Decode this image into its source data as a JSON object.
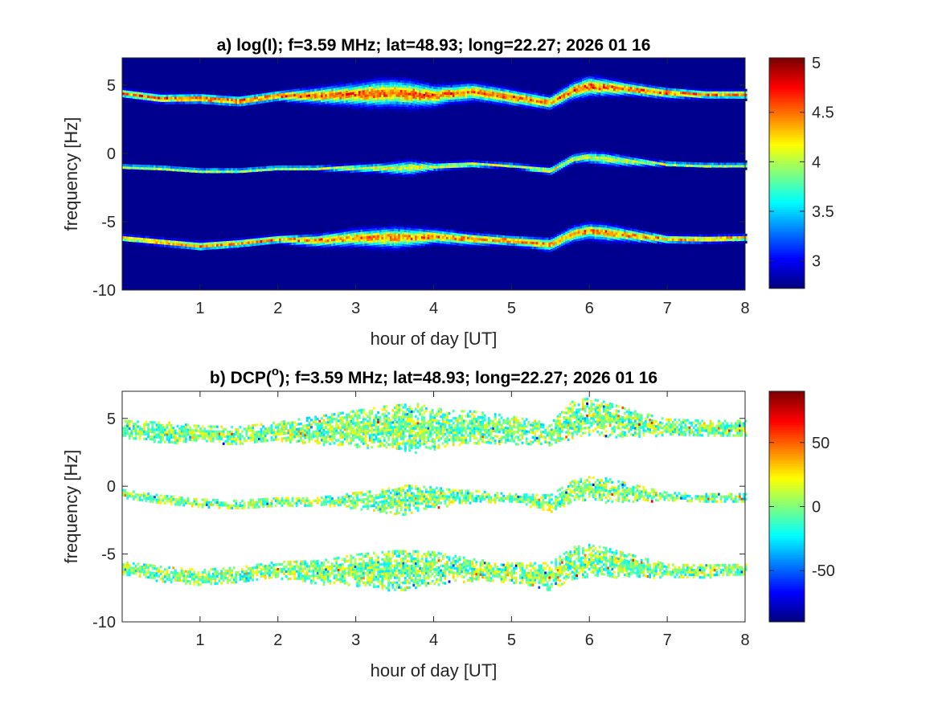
{
  "chart_data": [
    {
      "type": "heatmap",
      "title": "a) log(I); f=3.59 MHz;  lat=48.93; long=22.27; 2026 01 16",
      "xlabel": "hour of day [UT]",
      "ylabel": "frequency [Hz]",
      "xlim": [
        0,
        8
      ],
      "ylim": [
        -10,
        7
      ],
      "xticks": [
        1,
        2,
        3,
        4,
        5,
        6,
        7,
        8
      ],
      "yticks": [
        -10,
        -5,
        0,
        5
      ],
      "background": "#00008f",
      "colorbar": {
        "ticks": [
          "3",
          "3.5",
          "4",
          "4.5",
          "5"
        ],
        "tick_values": [
          3,
          3.5,
          4,
          4.5,
          5
        ],
        "range": [
          2.72,
          5.05
        ],
        "colormap": "jet"
      },
      "bands": [
        {
          "center": [
            [
              0,
              4.5
            ],
            [
              0.5,
              4.1
            ],
            [
              1,
              4.1
            ],
            [
              1.5,
              3.9
            ],
            [
              2,
              4.3
            ],
            [
              2.5,
              4.3
            ],
            [
              3,
              4.4
            ],
            [
              3.5,
              4.5
            ],
            [
              4,
              4.3
            ],
            [
              4.5,
              4.6
            ],
            [
              5,
              4.2
            ],
            [
              5.5,
              3.8
            ],
            [
              5.8,
              4.7
            ],
            [
              6,
              5.0
            ],
            [
              6.5,
              4.8
            ],
            [
              7,
              4.5
            ],
            [
              7.5,
              4.4
            ],
            [
              8,
              4.4
            ]
          ],
          "spread": [
            [
              0,
              0.5
            ],
            [
              1,
              0.6
            ],
            [
              2,
              0.6
            ],
            [
              2.8,
              1.2
            ],
            [
              3.3,
              1.6
            ],
            [
              3.7,
              1.6
            ],
            [
              4.2,
              1.1
            ],
            [
              4.8,
              1.0
            ],
            [
              5.5,
              0.8
            ],
            [
              6,
              1.2
            ],
            [
              6.5,
              0.8
            ],
            [
              7.5,
              0.5
            ],
            [
              8,
              0.5
            ]
          ],
          "peak": 4.8
        },
        {
          "center": [
            [
              0,
              -0.9
            ],
            [
              0.5,
              -1.0
            ],
            [
              1,
              -1.2
            ],
            [
              1.5,
              -1.2
            ],
            [
              2,
              -1.0
            ],
            [
              2.5,
              -1.0
            ],
            [
              3,
              -1.0
            ],
            [
              3.5,
              -1.0
            ],
            [
              4,
              -0.9
            ],
            [
              4.5,
              -0.7
            ],
            [
              5,
              -0.8
            ],
            [
              5.5,
              -1.2
            ],
            [
              5.8,
              -0.3
            ],
            [
              6,
              -0.2
            ],
            [
              6.5,
              -0.5
            ],
            [
              7,
              -0.7
            ],
            [
              7.5,
              -0.8
            ],
            [
              8,
              -0.8
            ]
          ],
          "spread": [
            [
              0,
              0.3
            ],
            [
              2.5,
              0.3
            ],
            [
              3.3,
              0.6
            ],
            [
              3.7,
              0.9
            ],
            [
              4,
              0.5
            ],
            [
              5,
              0.3
            ],
            [
              5.8,
              0.6
            ],
            [
              6.2,
              0.8
            ],
            [
              7,
              0.3
            ],
            [
              8,
              0.3
            ]
          ],
          "peak": 4.3
        },
        {
          "center": [
            [
              0,
              -6.1
            ],
            [
              0.5,
              -6.4
            ],
            [
              1,
              -6.7
            ],
            [
              1.5,
              -6.5
            ],
            [
              2,
              -6.2
            ],
            [
              2.5,
              -6.3
            ],
            [
              3,
              -6.1
            ],
            [
              3.5,
              -6.1
            ],
            [
              4,
              -6.0
            ],
            [
              4.5,
              -6.2
            ],
            [
              5,
              -6.3
            ],
            [
              5.5,
              -6.6
            ],
            [
              5.8,
              -5.8
            ],
            [
              6,
              -5.6
            ],
            [
              6.5,
              -5.9
            ],
            [
              7,
              -6.2
            ],
            [
              7.5,
              -6.2
            ],
            [
              8,
              -6.1
            ]
          ],
          "spread": [
            [
              0,
              0.4
            ],
            [
              1,
              0.5
            ],
            [
              2,
              0.5
            ],
            [
              2.8,
              0.9
            ],
            [
              3.5,
              1.3
            ],
            [
              4,
              0.9
            ],
            [
              5,
              0.6
            ],
            [
              5.8,
              0.9
            ],
            [
              6.2,
              1.0
            ],
            [
              7,
              0.5
            ],
            [
              8,
              0.4
            ]
          ],
          "peak": 4.7
        }
      ]
    },
    {
      "type": "heatmap",
      "title_prefix": "b) DCP(",
      "title_superscript": "o",
      "title_suffix": "); f=3.59 MHz;  lat=48.93; long=22.27; 2026 01 16",
      "xlabel": "hour of day [UT]",
      "ylabel": "frequency [Hz]",
      "xlim": [
        0,
        8
      ],
      "ylim": [
        -10,
        7
      ],
      "xticks": [
        1,
        2,
        3,
        4,
        5,
        6,
        7,
        8
      ],
      "yticks": [
        -10,
        -5,
        0,
        5
      ],
      "background": "#ffffff",
      "colorbar": {
        "ticks": [
          "-50",
          "0",
          "50"
        ],
        "tick_values": [
          -50,
          0,
          50
        ],
        "range": [
          -90,
          90
        ],
        "colormap": "jet"
      },
      "bands": [
        {
          "center": [
            [
              0,
              4.3
            ],
            [
              0.5,
              4.0
            ],
            [
              1,
              3.9
            ],
            [
              1.5,
              3.8
            ],
            [
              2,
              4.1
            ],
            [
              2.5,
              4.2
            ],
            [
              3,
              4.3
            ],
            [
              3.5,
              4.4
            ],
            [
              4,
              4.3
            ],
            [
              4.5,
              4.4
            ],
            [
              5,
              4.2
            ],
            [
              5.5,
              3.9
            ],
            [
              5.8,
              5.0
            ],
            [
              6,
              5.2
            ],
            [
              6.5,
              4.7
            ],
            [
              7,
              4.4
            ],
            [
              7.5,
              4.3
            ],
            [
              8,
              4.3
            ]
          ],
          "spread": [
            [
              0,
              0.6
            ],
            [
              0.6,
              0.8
            ],
            [
              1,
              0.6
            ],
            [
              2,
              0.7
            ],
            [
              2.8,
              1.2
            ],
            [
              3.4,
              1.6
            ],
            [
              3.8,
              1.8
            ],
            [
              4.2,
              1.3
            ],
            [
              4.8,
              1.1
            ],
            [
              5.5,
              0.8
            ],
            [
              5.8,
              1.4
            ],
            [
              6.2,
              1.3
            ],
            [
              7,
              0.6
            ],
            [
              8,
              0.6
            ]
          ],
          "peak": 0
        },
        {
          "center": [
            [
              0,
              -0.5
            ],
            [
              0.5,
              -0.9
            ],
            [
              1,
              -1.2
            ],
            [
              1.5,
              -1.3
            ],
            [
              2,
              -1.1
            ],
            [
              2.5,
              -1.1
            ],
            [
              3,
              -1.0
            ],
            [
              3.5,
              -1.0
            ],
            [
              4,
              -0.8
            ],
            [
              4.5,
              -0.7
            ],
            [
              5,
              -0.8
            ],
            [
              5.5,
              -1.2
            ],
            [
              5.8,
              -0.3
            ],
            [
              6,
              -0.1
            ],
            [
              6.5,
              -0.4
            ],
            [
              7,
              -0.7
            ],
            [
              7.5,
              -0.8
            ],
            [
              8,
              -0.8
            ]
          ],
          "spread": [
            [
              0,
              0.3
            ],
            [
              2.5,
              0.3
            ],
            [
              3.2,
              0.7
            ],
            [
              3.6,
              1.1
            ],
            [
              4,
              0.8
            ],
            [
              4.3,
              0.5
            ],
            [
              5,
              0.3
            ],
            [
              5.8,
              0.8
            ],
            [
              6.2,
              0.9
            ],
            [
              7,
              0.3
            ],
            [
              8,
              0.3
            ]
          ],
          "peak": 0
        },
        {
          "center": [
            [
              0,
              -6.0
            ],
            [
              0.5,
              -6.4
            ],
            [
              1,
              -6.7
            ],
            [
              1.5,
              -6.5
            ],
            [
              2,
              -6.1
            ],
            [
              2.5,
              -6.3
            ],
            [
              3,
              -6.1
            ],
            [
              3.5,
              -6.2
            ],
            [
              4,
              -6.0
            ],
            [
              4.5,
              -6.1
            ],
            [
              5,
              -6.3
            ],
            [
              5.5,
              -6.6
            ],
            [
              5.8,
              -5.6
            ],
            [
              6,
              -5.4
            ],
            [
              6.5,
              -5.8
            ],
            [
              7,
              -6.2
            ],
            [
              7.5,
              -6.2
            ],
            [
              8,
              -6.1
            ]
          ],
          "spread": [
            [
              0,
              0.5
            ],
            [
              1,
              0.6
            ],
            [
              2,
              0.6
            ],
            [
              2.8,
              1.0
            ],
            [
              3.5,
              1.5
            ],
            [
              3.9,
              1.3
            ],
            [
              4.5,
              0.8
            ],
            [
              5,
              0.7
            ],
            [
              5.8,
              1.2
            ],
            [
              6.2,
              1.1
            ],
            [
              7,
              0.5
            ],
            [
              8,
              0.4
            ]
          ],
          "peak": 0
        }
      ]
    }
  ]
}
